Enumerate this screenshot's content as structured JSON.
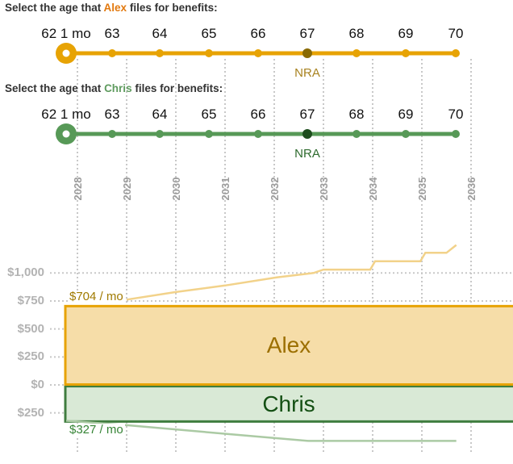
{
  "alex_slider": {
    "title_prefix": "Select the age that",
    "name": "Alex",
    "title_suffix": "files for benefits:",
    "ages": [
      "62 1 mo",
      "63",
      "64",
      "65",
      "66",
      "67",
      "68",
      "69",
      "70"
    ],
    "selected_age_index": 0,
    "nra_label": "NRA",
    "nra_age_index": 5,
    "accent": "#e7a304",
    "name_color": "#e2790f",
    "nra_dot_color": "#8a6a02",
    "nra_text_color": "#a8821f"
  },
  "chris_slider": {
    "title_prefix": "Select the age that",
    "name": "Chris",
    "title_suffix": "files for benefits:",
    "ages": [
      "62 1 mo",
      "63",
      "64",
      "65",
      "66",
      "67",
      "68",
      "69",
      "70"
    ],
    "selected_age_index": 0,
    "nra_label": "NRA",
    "nra_age_index": 5,
    "accent": "#579957",
    "name_color": "#5f9b5f",
    "nra_dot_color": "#1d4d1d",
    "nra_text_color": "#2d6a2d"
  },
  "chart_data": {
    "type": "area",
    "x_years": [
      2028,
      2029,
      2030,
      2031,
      2032,
      2033,
      2034,
      2035,
      2036
    ],
    "y_axis": [
      {
        "value": 1000,
        "label": "$1,000"
      },
      {
        "value": 750,
        "label": "$750"
      },
      {
        "value": 500,
        "label": "$500"
      },
      {
        "value": 250,
        "label": "$250"
      },
      {
        "value": 0,
        "label": "$0"
      },
      {
        "value": -250,
        "label": "$250"
      }
    ],
    "grid_color": "#c8c8c8",
    "areas": [
      {
        "name": "alex",
        "label": "Alex",
        "start_value_label": "$704 / mo",
        "top": 704,
        "bottom": 0,
        "fill": "#f6dda8",
        "border": "#e7a304",
        "text_color": "#9c6f00",
        "value_text_color": "#a07a00"
      },
      {
        "name": "chris",
        "label": "Chris",
        "start_value_label": "$327 / mo",
        "top": 0,
        "bottom": -327,
        "fill": "#d9e9d6",
        "border": "#3f7d3f",
        "text_color": "#134f13",
        "value_text_color": "#368436"
      }
    ],
    "series": [
      {
        "name": "alex-benefit-line",
        "color": "#f2d28a",
        "points": [
          [
            2029.0,
            762
          ],
          [
            2030.0,
            830
          ],
          [
            2031.0,
            888
          ],
          [
            2032.05,
            960
          ],
          [
            2032.8,
            1000
          ],
          [
            2033.0,
            1030
          ],
          [
            2033.95,
            1030
          ],
          [
            2034.05,
            1105
          ],
          [
            2034.97,
            1105
          ],
          [
            2035.07,
            1180
          ],
          [
            2035.5,
            1180
          ],
          [
            2035.7,
            1250
          ]
        ]
      },
      {
        "name": "chris-benefit-line",
        "color": "#abcaa4",
        "points": [
          [
            2027.77,
            -320
          ],
          [
            2029.0,
            -360
          ],
          [
            2031.3,
            -448
          ],
          [
            2032.7,
            -500
          ],
          [
            2035.7,
            -500
          ]
        ]
      }
    ]
  }
}
